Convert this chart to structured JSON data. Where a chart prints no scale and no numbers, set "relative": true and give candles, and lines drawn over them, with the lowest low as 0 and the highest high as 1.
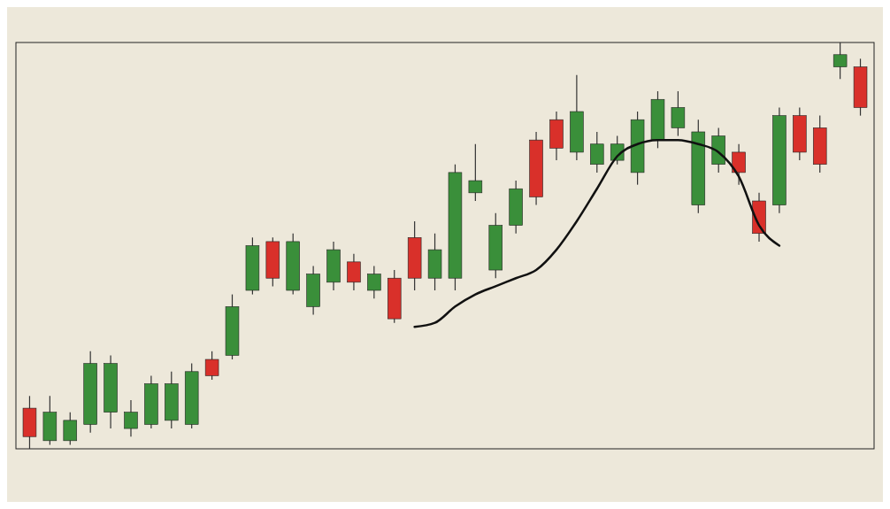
{
  "chart_data": {
    "type": "candlestick",
    "relative": true,
    "categories": [
      null,
      null,
      null,
      null,
      null,
      null,
      null,
      null,
      null,
      null,
      null,
      null,
      null,
      null,
      null,
      null,
      null,
      null,
      null,
      null,
      null,
      null,
      null,
      null,
      null,
      null,
      null,
      null,
      null,
      null,
      null,
      null,
      null,
      null,
      null,
      null,
      null,
      null,
      null,
      null,
      null,
      null
    ],
    "ohlc": [
      [
        0.1,
        0.13,
        0,
        0.03
      ],
      [
        0.02,
        0.13,
        0.01,
        0.09
      ],
      [
        0.02,
        0.09,
        0.01,
        0.07
      ],
      [
        0.06,
        0.24,
        0.04,
        0.21
      ],
      [
        0.09,
        0.23,
        0.05,
        0.21
      ],
      [
        0.05,
        0.12,
        0.03,
        0.09
      ],
      [
        0.06,
        0.18,
        0.05,
        0.16
      ],
      [
        0.07,
        0.19,
        0.05,
        0.16
      ],
      [
        0.06,
        0.21,
        0.05,
        0.19
      ],
      [
        0.22,
        0.24,
        0.17,
        0.18
      ],
      [
        0.23,
        0.38,
        0.22,
        0.35
      ],
      [
        0.39,
        0.52,
        0.38,
        0.5
      ],
      [
        0.51,
        0.52,
        0.4,
        0.42
      ],
      [
        0.39,
        0.53,
        0.38,
        0.51
      ],
      [
        0.35,
        0.45,
        0.33,
        0.43
      ],
      [
        0.41,
        0.51,
        0.39,
        0.49
      ],
      [
        0.46,
        0.48,
        0.39,
        0.41
      ],
      [
        0.39,
        0.45,
        0.37,
        0.43
      ],
      [
        0.42,
        0.44,
        0.31,
        0.32
      ],
      [
        0.52,
        0.56,
        0.39,
        0.42
      ],
      [
        0.42,
        0.53,
        0.39,
        0.49
      ],
      [
        0.42,
        0.7,
        0.39,
        0.68
      ],
      [
        0.63,
        0.75,
        0.61,
        0.66
      ],
      [
        0.44,
        0.58,
        0.42,
        0.55
      ],
      [
        0.55,
        0.66,
        0.53,
        0.64
      ],
      [
        0.76,
        0.78,
        0.6,
        0.62
      ],
      [
        0.81,
        0.83,
        0.71,
        0.74
      ],
      [
        0.73,
        0.92,
        0.71,
        0.83
      ],
      [
        0.7,
        0.78,
        0.68,
        0.75
      ],
      [
        0.71,
        0.77,
        0.7,
        0.75
      ],
      [
        0.68,
        0.83,
        0.65,
        0.81
      ],
      [
        0.76,
        0.88,
        0.74,
        0.86
      ],
      [
        0.79,
        0.88,
        0.77,
        0.84
      ],
      [
        0.6,
        0.81,
        0.58,
        0.78
      ],
      [
        0.7,
        0.79,
        0.68,
        0.77
      ],
      [
        0.73,
        0.75,
        0.65,
        0.68
      ],
      [
        0.61,
        0.63,
        0.51,
        0.53
      ],
      [
        0.6,
        0.84,
        0.58,
        0.82
      ],
      [
        0.82,
        0.84,
        0.71,
        0.73
      ],
      [
        0.79,
        0.82,
        0.68,
        0.7
      ],
      [
        0.94,
        1,
        0.91,
        0.97
      ],
      [
        0.94,
        0.96,
        0.82,
        0.84
      ]
    ],
    "series": [
      {
        "type": "line",
        "color": "#111111",
        "values": [
          null,
          null,
          null,
          null,
          null,
          null,
          null,
          null,
          null,
          null,
          null,
          null,
          null,
          null,
          null,
          null,
          null,
          null,
          null,
          0.3,
          0.31,
          0.35,
          0.38,
          0.4,
          0.42,
          0.44,
          0.49,
          0.56,
          0.64,
          0.72,
          0.75,
          0.76,
          0.76,
          0.75,
          0.73,
          0.67,
          0.55,
          0.5,
          null,
          null,
          null,
          null
        ]
      }
    ]
  }
}
